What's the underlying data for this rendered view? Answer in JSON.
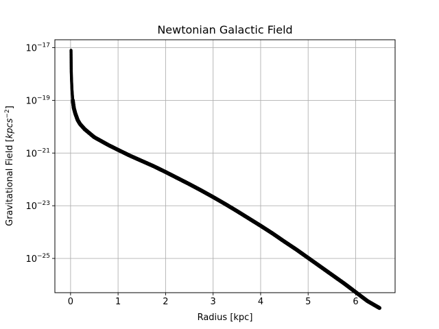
{
  "chart_data": {
    "type": "scatter",
    "title": "Newtonian Galactic Field",
    "xlabel": "Radius [kpc]",
    "ylabel_text": "Gravitational Field [",
    "ylabel_math": "kpcs",
    "ylabel_exp": "−2",
    "ylabel_close": "]",
    "xlim": [
      -0.33,
      6.83
    ],
    "ylim_exp": [
      -26.3,
      -16.7
    ],
    "yscale": "log",
    "grid": true,
    "marker_color": "#000000",
    "x_ticks": [
      {
        "value": 0,
        "label": "0"
      },
      {
        "value": 1,
        "label": "1"
      },
      {
        "value": 2,
        "label": "2"
      },
      {
        "value": 3,
        "label": "3"
      },
      {
        "value": 4,
        "label": "4"
      },
      {
        "value": 5,
        "label": "5"
      },
      {
        "value": 6,
        "label": "6"
      }
    ],
    "y_ticks": [
      {
        "exp": -17,
        "base": "10",
        "sup": "−17"
      },
      {
        "exp": -19,
        "base": "10",
        "sup": "−19"
      },
      {
        "exp": -21,
        "base": "10",
        "sup": "−21"
      },
      {
        "exp": -23,
        "base": "10",
        "sup": "−23"
      },
      {
        "exp": -25,
        "base": "10",
        "sup": "−25"
      }
    ],
    "series": [
      {
        "x": [
          0.01,
          0.015,
          0.02,
          0.03,
          0.04,
          0.05,
          0.07,
          0.1,
          0.15,
          0.2,
          0.3,
          0.4,
          0.5,
          0.6,
          0.8,
          1.0,
          1.25,
          1.5,
          1.75,
          2.0,
          2.25,
          2.5,
          2.75,
          3.0,
          3.25,
          3.5,
          3.75,
          4.0,
          4.25,
          4.5,
          4.75,
          5.0,
          5.25,
          5.5,
          5.75,
          6.0,
          6.25,
          6.5
        ],
        "log10_y": [
          -17.1,
          -17.9,
          -18.2,
          -18.6,
          -18.85,
          -19.05,
          -19.3,
          -19.5,
          -19.75,
          -19.9,
          -20.1,
          -20.25,
          -20.4,
          -20.5,
          -20.7,
          -20.88,
          -21.1,
          -21.3,
          -21.5,
          -21.72,
          -21.95,
          -22.18,
          -22.42,
          -22.67,
          -22.93,
          -23.2,
          -23.48,
          -23.76,
          -24.05,
          -24.36,
          -24.66,
          -24.98,
          -25.3,
          -25.62,
          -25.94,
          -26.28,
          -26.62,
          -26.88
        ]
      }
    ]
  }
}
